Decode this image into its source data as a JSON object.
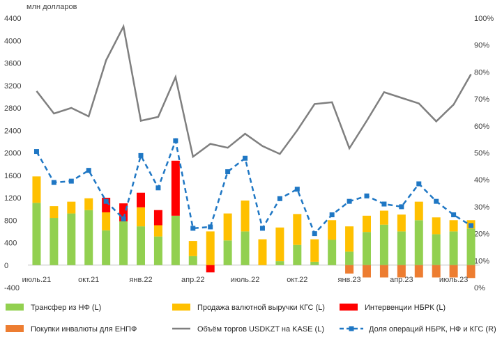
{
  "chart_data": {
    "type": "bar",
    "unit_label": "млн долларов",
    "left_axis": {
      "ticks": [
        4400,
        4000,
        3600,
        3200,
        2800,
        2400,
        2000,
        1600,
        1200,
        800,
        400,
        0,
        -400
      ],
      "ylim": [
        -400,
        4400
      ]
    },
    "right_axis": {
      "ticks": [
        "100%",
        "90%",
        "80%",
        "70%",
        "60%",
        "50%",
        "40%",
        "30%",
        "20%",
        "10%",
        "0%"
      ],
      "ylim": [
        0,
        100
      ]
    },
    "x_labels": [
      {
        "index": 0,
        "label": "июль.21"
      },
      {
        "index": 3,
        "label": "окт.21"
      },
      {
        "index": 6,
        "label": "янв.22"
      },
      {
        "index": 9,
        "label": "апр.22"
      },
      {
        "index": 12,
        "label": "июль.22"
      },
      {
        "index": 15,
        "label": "окт.22"
      },
      {
        "index": 18,
        "label": "янв.23"
      },
      {
        "index": 21,
        "label": "апр.23"
      },
      {
        "index": 24,
        "label": "июль.23"
      }
    ],
    "months": 26,
    "colors": {
      "transfer": "#92d050",
      "sales": "#ffc000",
      "interventions": "#ff0000",
      "enpf": "#ed7d31",
      "volume": "#7f7f7f",
      "share": "#1f77c4"
    },
    "series": [
      {
        "name": "Трансфер из НФ (L)",
        "key": "transfer",
        "axis": "left",
        "type": "bar",
        "values": [
          1110,
          840,
          920,
          980,
          620,
          780,
          690,
          510,
          880,
          160,
          0,
          440,
          600,
          0,
          70,
          360,
          60,
          450,
          240,
          590,
          720,
          600,
          800,
          550,
          600,
          650
        ]
      },
      {
        "name": "Продажа валютной выручки КГС (L)",
        "key": "sales",
        "axis": "left",
        "type": "bar",
        "values": [
          470,
          210,
          210,
          210,
          320,
          0,
          340,
          200,
          0,
          270,
          600,
          480,
          550,
          460,
          600,
          550,
          400,
          350,
          450,
          290,
          250,
          300,
          330,
          300,
          200,
          150
        ]
      },
      {
        "name": "Интервенции НБРК (L)",
        "key": "interventions",
        "axis": "left",
        "type": "bar",
        "values": [
          0,
          0,
          0,
          0,
          260,
          320,
          260,
          270,
          980,
          0,
          -130,
          0,
          0,
          0,
          0,
          0,
          0,
          0,
          0,
          0,
          0,
          0,
          0,
          0,
          0,
          0
        ]
      },
      {
        "name": "Покупки инвалюты для ЕНПФ (L)",
        "key": "enpf",
        "axis": "left",
        "type": "bar",
        "values": [
          0,
          0,
          0,
          0,
          0,
          0,
          0,
          0,
          0,
          0,
          0,
          0,
          0,
          0,
          0,
          0,
          0,
          0,
          -150,
          -220,
          -220,
          -220,
          -220,
          -220,
          -220,
          -230
        ]
      },
      {
        "name": "Объём торгов USDKZT на KASE (L)",
        "key": "volume",
        "axis": "left",
        "type": "line",
        "values": [
          3100,
          2700,
          2800,
          2650,
          3650,
          4250,
          2570,
          2640,
          3350,
          1930,
          2160,
          2090,
          2340,
          2120,
          1980,
          2400,
          2870,
          2900,
          2080,
          2570,
          3080,
          2980,
          2880,
          2560,
          2860,
          3400
        ]
      },
      {
        "name": "Доля операций НБРК, НФ и КГС (R)",
        "key": "share",
        "axis": "right",
        "type": "line-marker",
        "values": [
          50.5,
          39,
          39.5,
          43.5,
          32,
          25.5,
          49,
          37,
          54.5,
          22,
          22.5,
          43,
          48,
          22,
          33,
          36.5,
          20,
          27,
          32,
          34,
          31,
          30,
          38.5,
          32,
          27,
          23
        ]
      }
    ],
    "legend": [
      {
        "label": "Трансфер из НФ (L)",
        "key": "transfer",
        "style": "swatch"
      },
      {
        "label": "Продажа валютной выручки КГС (L)",
        "key": "sales",
        "style": "swatch"
      },
      {
        "label": "Интервенции НБРК (L)",
        "key": "interventions",
        "style": "swatch"
      },
      {
        "label": "Покупки инвалюты для ЕНПФ",
        "key": "enpf",
        "style": "swatch"
      },
      {
        "label": "Объём торгов USDKZT на KASE (L)",
        "key": "volume",
        "style": "line"
      },
      {
        "label": "Доля операций НБРК, НФ и КГС (R)",
        "key": "share",
        "style": "dash-marker"
      }
    ],
    "legend_placement": "bottom",
    "grid": false
  }
}
